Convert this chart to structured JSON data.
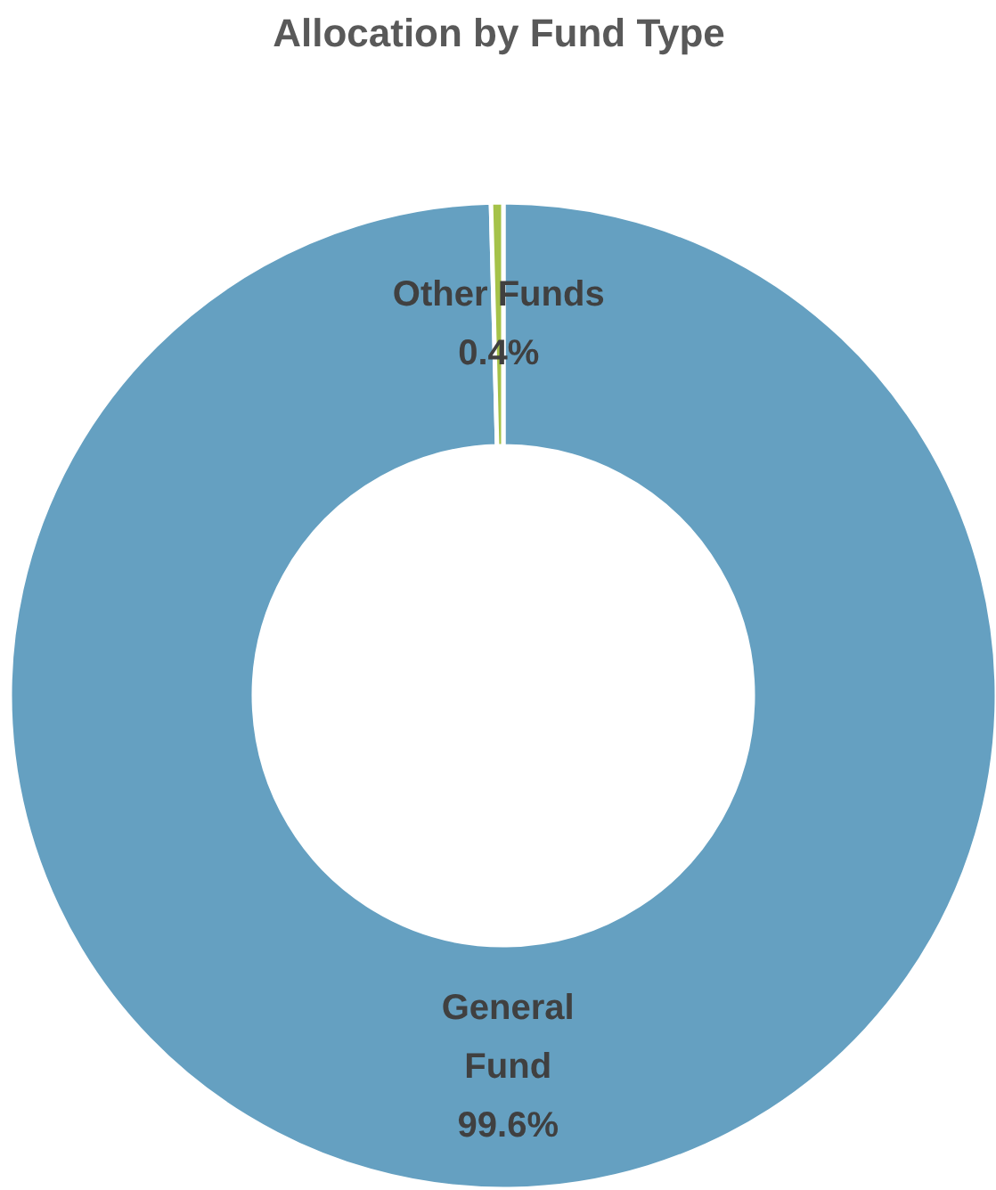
{
  "chart_data": {
    "type": "donut",
    "title": "Allocation by Fund Type",
    "categories": [
      "General Fund",
      "Other Funds"
    ],
    "values": [
      99.6,
      0.4
    ],
    "colors": [
      "#65a0c1",
      "#a5c249"
    ],
    "value_labels": [
      "99.6%",
      "0.4%"
    ]
  }
}
